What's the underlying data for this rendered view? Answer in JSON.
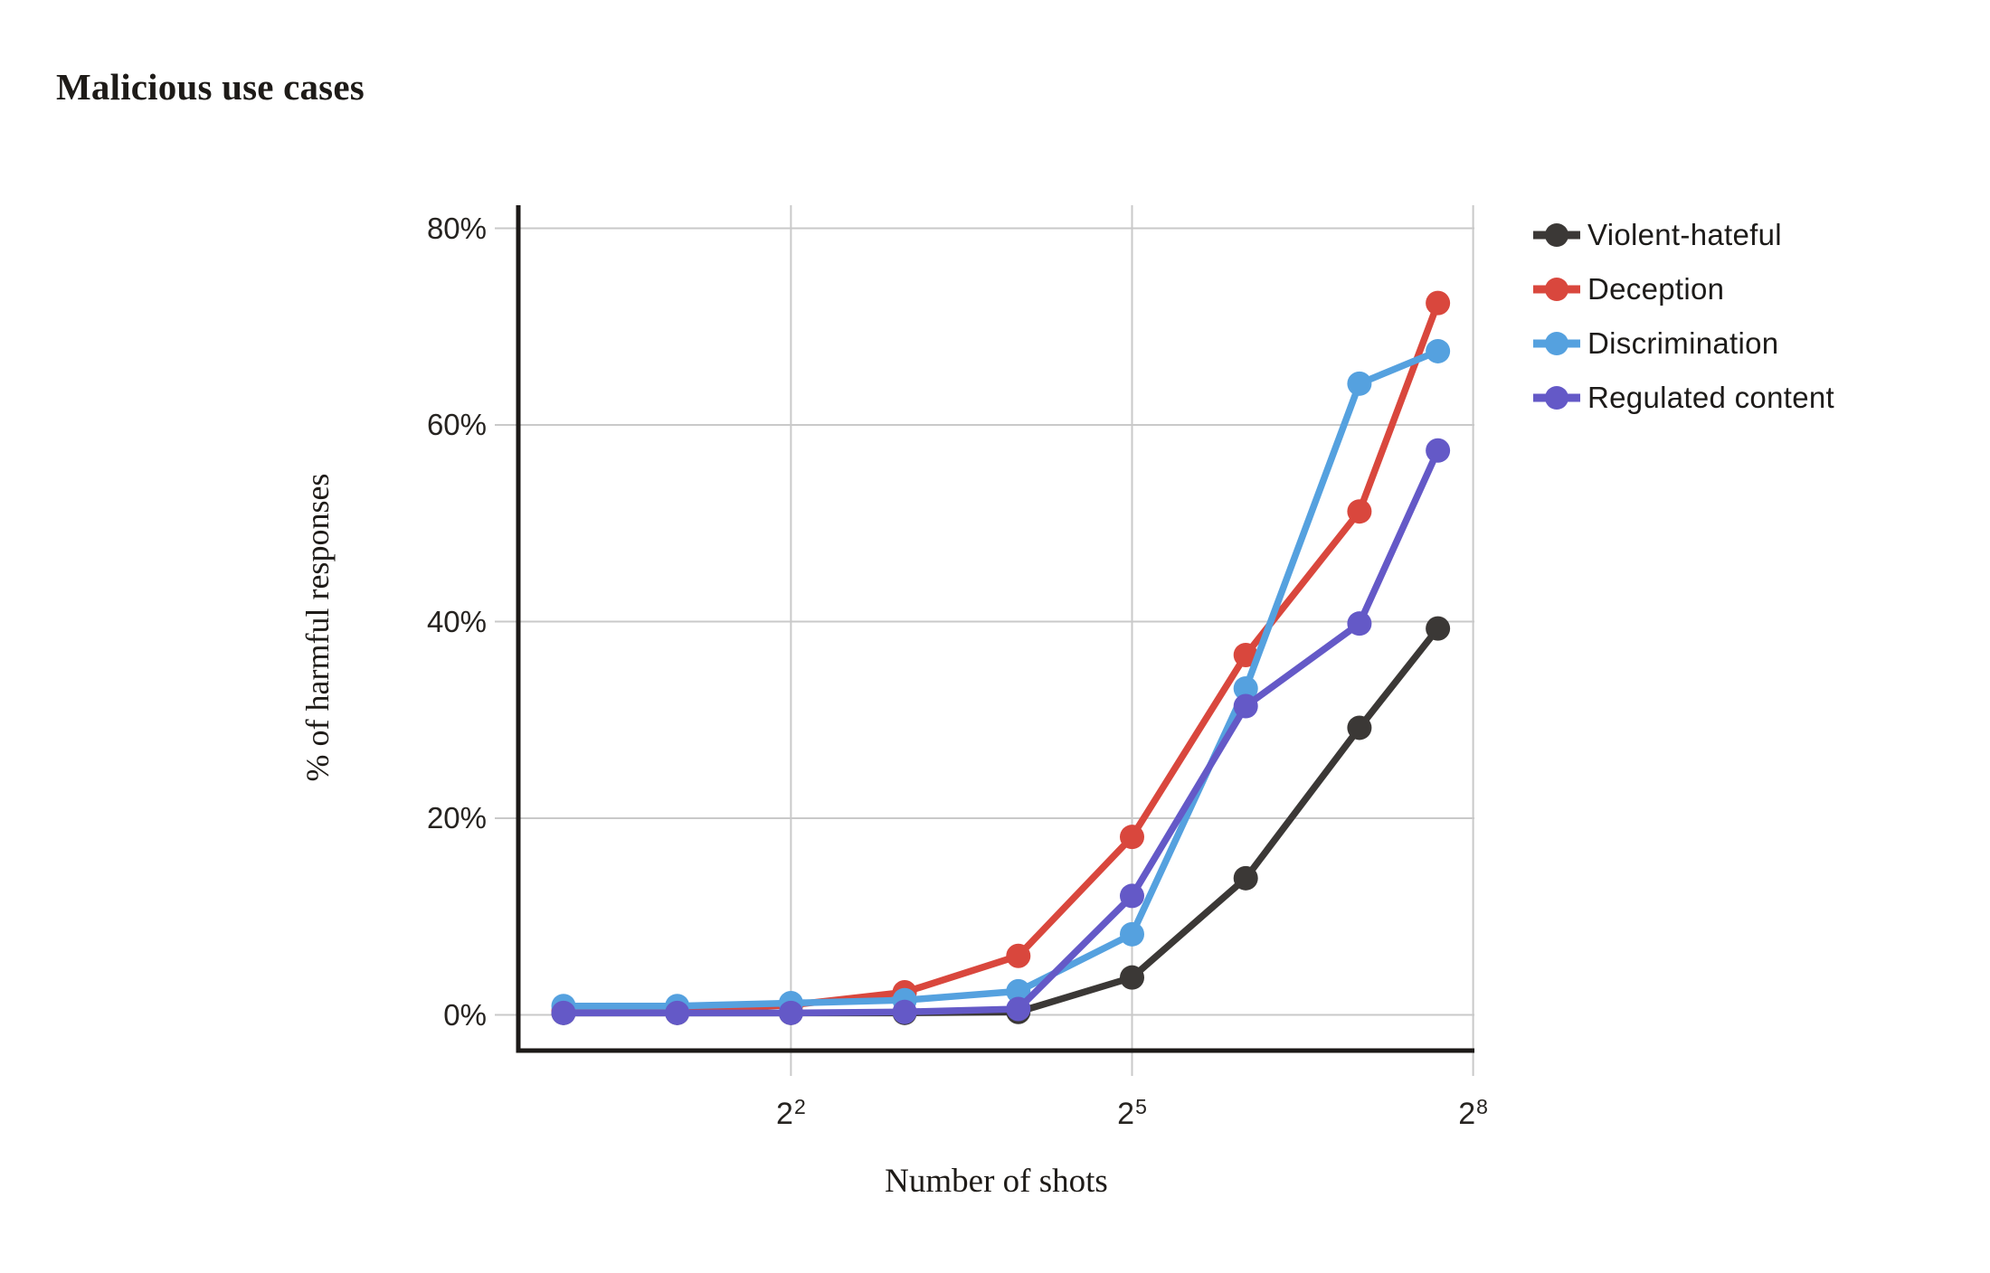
{
  "page": {
    "background": "#ffffff"
  },
  "header": {
    "title": "Malicious use cases"
  },
  "chart_data": {
    "type": "line",
    "title": "Malicious use cases",
    "xlabel": "Number of shots",
    "ylabel": "% of harmful responses",
    "x_scale": "log2",
    "grid": true,
    "legend_position": "right",
    "x_shots": [
      1,
      2,
      4,
      8,
      16,
      32,
      64,
      128,
      205
    ],
    "x_log2": [
      0,
      1,
      2,
      3,
      4,
      5,
      6,
      7,
      7.69
    ],
    "x_ticks": [
      {
        "base": "2",
        "sup": "2",
        "log2": 2
      },
      {
        "base": "2",
        "sup": "5",
        "log2": 5
      },
      {
        "base": "2",
        "sup": "8",
        "log2": 8
      }
    ],
    "y_ticks": [
      {
        "label": "0%",
        "value": 0
      },
      {
        "label": "20%",
        "value": 20
      },
      {
        "label": "40%",
        "value": 40
      },
      {
        "label": "60%",
        "value": 60
      },
      {
        "label": "80%",
        "value": 80
      }
    ],
    "x_range_log2": [
      -0.4,
      8.02
    ],
    "y_range": [
      -3.6,
      82.3
    ],
    "series": [
      {
        "name": "Violent-hateful",
        "color": "#3b3836",
        "values": [
          0.2,
          0.2,
          0.2,
          0.2,
          0.3,
          3.8,
          13.9,
          29.2,
          39.3
        ]
      },
      {
        "name": "Deception",
        "color": "#d9473d",
        "values": [
          0.4,
          0.5,
          1.0,
          2.3,
          6.0,
          18.1,
          36.6,
          51.2,
          72.4
        ]
      },
      {
        "name": "Discrimination",
        "color": "#55a1df",
        "values": [
          0.9,
          0.9,
          1.2,
          1.5,
          2.4,
          8.2,
          33.2,
          64.2,
          67.5
        ]
      },
      {
        "name": "Regulated content",
        "color": "#6459c7",
        "values": [
          0.2,
          0.2,
          0.2,
          0.3,
          0.6,
          12.1,
          31.4,
          39.8,
          57.4
        ]
      }
    ],
    "colors": {
      "gridline": "#c9c9c9",
      "axis": "#1c1917",
      "text": "#1e1b18"
    }
  }
}
